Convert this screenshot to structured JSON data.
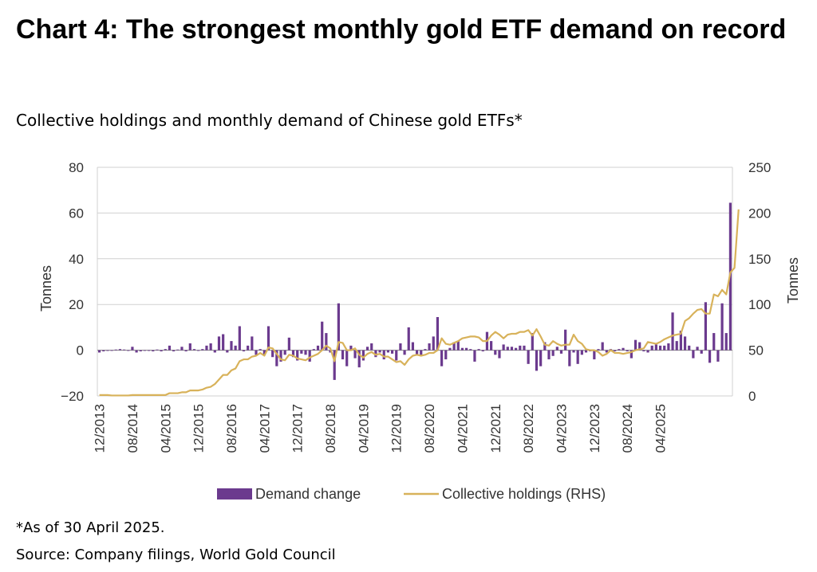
{
  "title": "Chart 4: The strongest monthly gold ETF demand on record",
  "subtitle": "Collective holdings and monthly demand of Chinese gold ETFs*",
  "footnote": "*As of 30 April 2025.",
  "source": "Source: Company filings, World Gold Council",
  "colors": {
    "bar": "#6B3A8E",
    "line": "#D8B25A",
    "grid": "#D0D0D0",
    "axis": "#888888"
  },
  "chart_data": {
    "type": "bar",
    "ylabel": "Tonnes",
    "y2label": "Tonnes",
    "ylim": [
      -20,
      80
    ],
    "y_ticks": [
      80,
      60,
      40,
      20,
      0,
      -20
    ],
    "y2lim": [
      0,
      250
    ],
    "y2_ticks": [
      250,
      200,
      150,
      100,
      50,
      0
    ],
    "grid": true,
    "legend_position": "bottom",
    "x_start": "12/2013",
    "x_tick_labels": [
      "12/2013",
      "08/2014",
      "04/2015",
      "12/2015",
      "08/2016",
      "04/2017",
      "12/2017",
      "08/2018",
      "04/2019",
      "12/2019",
      "08/2020",
      "04/2021",
      "12/2021",
      "08/2022",
      "04/2023",
      "12/2023",
      "08/2024",
      "04/2025"
    ],
    "series": [
      {
        "name": "Demand change",
        "type": "bar",
        "axis": "left",
        "values": [
          -1.0,
          -0.5,
          -0.3,
          0,
          0.3,
          0.5,
          0.3,
          -0.3,
          1.5,
          -1.0,
          -0.5,
          0,
          -0.3,
          -0.5,
          0.3,
          -0.5,
          0.5,
          2.0,
          -0.5,
          0.3,
          1.5,
          -0.5,
          3.0,
          0.5,
          -0.3,
          0.5,
          2.0,
          3.0,
          -1.0,
          6.0,
          7.0,
          -1.0,
          4.0,
          2.0,
          10.5,
          -0.5,
          2.0,
          6.0,
          -2.0,
          0.5,
          -2.0,
          10.5,
          -3.0,
          -7.0,
          -5.0,
          -2.0,
          5.5,
          -3.0,
          -4.5,
          -1.5,
          -2.0,
          -5.0,
          0.5,
          2.0,
          12.5,
          7.5,
          -1.0,
          -13.0,
          20.5,
          -4.0,
          -7.0,
          2.0,
          -3.5,
          -7.5,
          -4.5,
          1.5,
          3.0,
          -3.0,
          -1.0,
          -4.0,
          -1.0,
          -1.5,
          -4.5,
          3.0,
          -2.0,
          10.0,
          3.5,
          -2.0,
          -2.5,
          0.5,
          3.0,
          6.0,
          14.5,
          -7.0,
          -4.0,
          1.0,
          3.5,
          4.0,
          1.0,
          1.0,
          0.5,
          -5.0,
          0.5,
          -0.5,
          8.0,
          4.0,
          -2.0,
          -3.5,
          2.5,
          1.5,
          1.5,
          1.0,
          2.0,
          2.0,
          -6.0,
          7.5,
          -9.0,
          -7.0,
          3.5,
          -4.0,
          -2.5,
          1.5,
          -1.5,
          9.0,
          -7.0,
          -1.0,
          -6.0,
          -2.0,
          -1.0,
          -0.5,
          -4.0,
          0.5,
          3.5,
          -1.0,
          0.5,
          -0.5,
          0.5,
          1.0,
          -0.5,
          -3.5,
          4.5,
          3.5,
          -0.5,
          -1.0,
          2.0,
          2.5,
          2.0,
          2.0,
          3.0,
          16.5,
          4.0,
          8.5,
          6.0,
          2.0,
          -3.5,
          1.5,
          -1.5,
          21.0,
          -5.5,
          7.5,
          -5.0,
          20.5,
          7.5,
          64.5
        ]
      },
      {
        "name": "Collective holdings (RHS)",
        "type": "line",
        "axis": "right",
        "values": [
          1,
          1,
          1,
          0.5,
          0.5,
          0.5,
          0.5,
          0.5,
          1,
          1,
          1,
          1,
          1,
          1,
          1,
          1,
          1,
          3,
          3,
          3,
          4,
          4,
          6,
          6,
          6,
          7,
          9,
          10,
          13,
          18,
          23,
          23,
          28,
          30,
          38,
          40,
          40,
          43,
          44,
          47,
          44,
          53,
          52,
          46,
          40,
          39,
          45,
          44,
          41,
          40,
          39,
          42,
          44,
          46,
          50,
          55,
          52,
          38,
          59,
          58,
          50,
          50,
          52,
          45,
          42,
          46,
          48,
          45,
          46,
          43,
          43,
          40,
          37,
          38,
          34,
          40,
          44,
          45,
          44,
          45,
          47,
          47,
          50,
          63,
          57,
          56,
          58,
          60,
          63,
          64,
          65,
          65,
          64,
          60,
          60,
          66,
          70,
          67,
          63,
          67,
          68,
          68,
          70,
          70,
          72,
          66,
          73,
          65,
          56,
          55,
          60,
          57,
          55,
          56,
          56,
          67,
          60,
          57,
          51,
          50,
          50,
          48,
          44,
          46,
          50,
          47,
          47,
          46,
          47,
          48,
          50,
          51,
          52,
          59,
          58,
          57,
          59,
          62,
          64,
          66,
          67,
          68,
          82,
          85,
          90,
          94,
          95,
          90,
          90,
          111,
          109,
          116,
          111,
          135,
          140,
          204
        ]
      }
    ]
  }
}
